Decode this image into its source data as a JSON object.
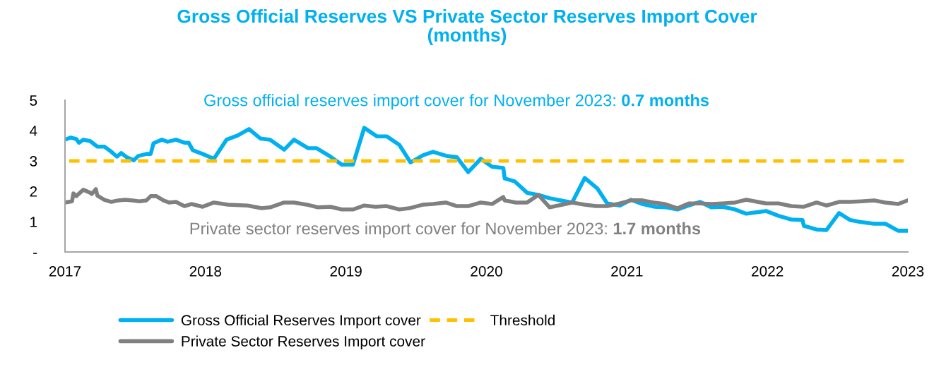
{
  "chart_data": {
    "type": "line",
    "title": "Gross Official Reserves VS Private Sector Reserves Import Cover\n(months)",
    "annotations": [
      "Gross official reserves import cover for November 2023: 0.7 months",
      "Private sector reserves import cover for November 2023: 1.7 months"
    ],
    "series": [
      {
        "name": "Gross Official Reserves Import cover",
        "color": "#00b0f0",
        "x": [
          2017.0,
          2017.04,
          2017.08,
          2017.1,
          2017.13,
          2017.18,
          2017.23,
          2017.28,
          2017.33,
          2017.37,
          2017.4,
          2017.44,
          2017.49,
          2017.52,
          2017.58,
          2017.61,
          2017.63,
          2017.69,
          2017.73,
          2017.79,
          2017.85,
          2017.88,
          2017.91,
          2017.98,
          2018.06,
          2018.15,
          2018.23,
          2018.31,
          2018.39,
          2018.46,
          2018.56,
          2018.63,
          2018.73,
          2018.79,
          2018.89,
          2018.97,
          2019.05,
          2019.13,
          2019.22,
          2019.29,
          2019.38,
          2019.46,
          2019.55,
          2019.62,
          2019.72,
          2019.79,
          2019.87,
          2019.96,
          2020.04,
          2020.12,
          2020.13,
          2020.2,
          2020.29,
          2020.37,
          2020.45,
          2020.53,
          2020.61,
          2020.7,
          2020.79,
          2020.86,
          2020.95,
          2021.03,
          2021.11,
          2021.2,
          2021.28,
          2021.36,
          2021.44,
          2021.52,
          2021.6,
          2021.68,
          2021.77,
          2021.85,
          2021.99,
          2022.08,
          2022.17,
          2022.25,
          2022.26,
          2022.35,
          2022.42,
          2022.51,
          2022.59,
          2022.67,
          2022.76,
          2022.84,
          2022.93,
          2023.0
        ],
        "values": [
          3.7,
          3.77,
          3.72,
          3.6,
          3.7,
          3.65,
          3.47,
          3.47,
          3.3,
          3.14,
          3.26,
          3.12,
          3.02,
          3.16,
          3.23,
          3.23,
          3.58,
          3.7,
          3.63,
          3.7,
          3.6,
          3.6,
          3.35,
          3.23,
          3.07,
          3.7,
          3.84,
          4.05,
          3.74,
          3.7,
          3.37,
          3.7,
          3.42,
          3.42,
          3.14,
          2.88,
          2.88,
          4.09,
          3.81,
          3.81,
          3.53,
          2.95,
          3.19,
          3.3,
          3.16,
          3.12,
          2.63,
          3.07,
          2.81,
          2.77,
          2.42,
          2.33,
          1.95,
          1.88,
          1.77,
          1.7,
          1.63,
          2.44,
          2.09,
          1.6,
          1.53,
          1.72,
          1.58,
          1.49,
          1.47,
          1.4,
          1.53,
          1.65,
          1.47,
          1.49,
          1.4,
          1.26,
          1.35,
          1.19,
          1.07,
          1.05,
          0.86,
          0.74,
          0.72,
          1.28,
          1.05,
          0.98,
          0.93,
          0.93,
          0.7,
          0.7
        ]
      },
      {
        "name": "Private Sector Reserves Import cover",
        "color": "#808080",
        "x": [
          2017.0,
          2017.05,
          2017.06,
          2017.08,
          2017.13,
          2017.18,
          2017.19,
          2017.22,
          2017.23,
          2017.28,
          2017.33,
          2017.38,
          2017.43,
          2017.48,
          2017.53,
          2017.58,
          2017.61,
          2017.65,
          2017.7,
          2017.74,
          2017.79,
          2017.85,
          2017.9,
          2017.98,
          2018.06,
          2018.16,
          2018.3,
          2018.4,
          2018.46,
          2018.56,
          2018.63,
          2018.72,
          2018.8,
          2018.89,
          2018.97,
          2019.05,
          2019.13,
          2019.21,
          2019.29,
          2019.38,
          2019.45,
          2019.55,
          2019.62,
          2019.71,
          2019.79,
          2019.87,
          2019.96,
          2020.04,
          2020.12,
          2020.13,
          2020.21,
          2020.29,
          2020.37,
          2020.45,
          2020.54,
          2020.61,
          2020.7,
          2020.78,
          2020.86,
          2020.95,
          2021.03,
          2021.11,
          2021.19,
          2021.27,
          2021.36,
          2021.44,
          2021.52,
          2021.6,
          2021.68,
          2021.77,
          2021.85,
          2021.99,
          2022.08,
          2022.17,
          2022.26,
          2022.35,
          2022.42,
          2022.51,
          2022.59,
          2022.67,
          2022.76,
          2022.84,
          2022.93,
          2023.0
        ],
        "values": [
          1.63,
          1.67,
          1.93,
          1.84,
          2.05,
          1.95,
          1.91,
          2.07,
          1.86,
          1.72,
          1.65,
          1.7,
          1.72,
          1.7,
          1.67,
          1.7,
          1.84,
          1.84,
          1.7,
          1.63,
          1.65,
          1.51,
          1.58,
          1.49,
          1.63,
          1.56,
          1.53,
          1.44,
          1.47,
          1.63,
          1.63,
          1.56,
          1.47,
          1.49,
          1.4,
          1.4,
          1.53,
          1.49,
          1.51,
          1.4,
          1.44,
          1.56,
          1.58,
          1.63,
          1.51,
          1.51,
          1.63,
          1.58,
          1.81,
          1.7,
          1.63,
          1.63,
          1.88,
          1.47,
          1.56,
          1.63,
          1.56,
          1.51,
          1.51,
          1.6,
          1.7,
          1.7,
          1.63,
          1.58,
          1.44,
          1.6,
          1.6,
          1.58,
          1.6,
          1.63,
          1.72,
          1.6,
          1.6,
          1.51,
          1.49,
          1.63,
          1.53,
          1.65,
          1.65,
          1.67,
          1.7,
          1.63,
          1.58,
          1.7
        ]
      }
    ],
    "ref_lines": [
      {
        "axis": "y",
        "value": 3,
        "label": "Threshold",
        "color": "#ffc000",
        "line_style": "dashed"
      }
    ],
    "xlim": [
      2017,
      2023
    ],
    "xticks": [
      2017,
      2018,
      2019,
      2020,
      2021,
      2022,
      2023
    ],
    "ylim": [
      0,
      5
    ],
    "yticks": [
      {
        "value": 0,
        "label": "-"
      },
      1,
      2,
      3,
      4,
      5
    ],
    "grid": false,
    "legend": "bottom",
    "marker": "none",
    "line_style": "solid"
  }
}
